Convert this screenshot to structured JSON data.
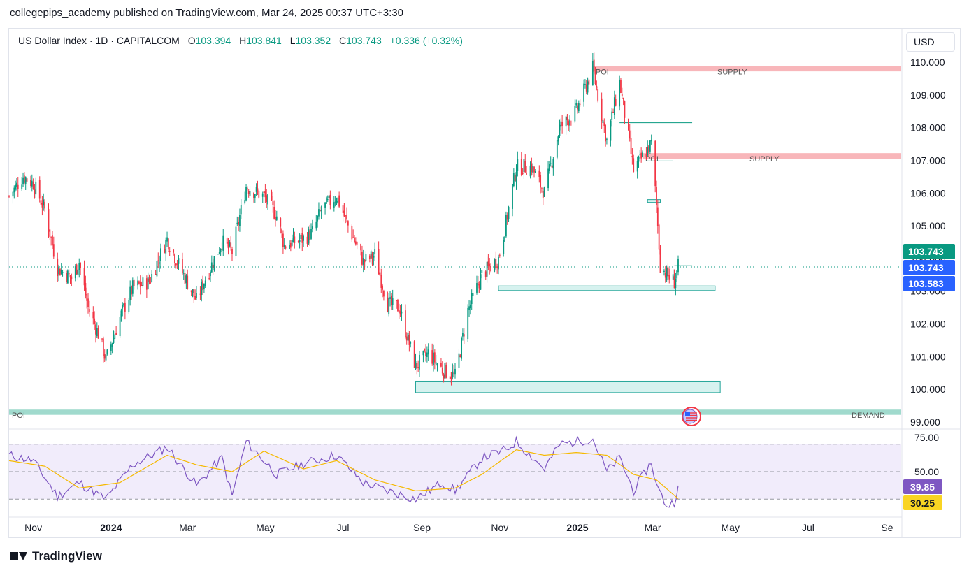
{
  "header": {
    "publisher": "collegepips_academy published on TradingView.com, Mar 24, 2025 00:37 UTC+3:30"
  },
  "legend": {
    "symbol": "US Dollar Index · 1D · CAPITALCOM",
    "o_label": "O",
    "o": "103.394",
    "h_label": "H",
    "h": "103.841",
    "l_label": "L",
    "l": "103.352",
    "c_label": "C",
    "c": "103.743",
    "change": "+0.336 (+0.32%)"
  },
  "currency_button": "USD",
  "footer": {
    "brand": "TradingView"
  },
  "colors": {
    "up": "#089981",
    "down": "#f23645",
    "rsi": "#7e57c2",
    "rsi_ma": "#f5b900",
    "supply": "#f7a9ae",
    "demand": "#8fd3c4",
    "zone": "#d6f2ef",
    "price_tag": "#089981",
    "blue_tag": "#2962ff"
  },
  "chart_data": [
    {
      "type": "candlestick",
      "title": "US Dollar Index · 1D · CAPITALCOM",
      "ylim": [
        98.9,
        110.3
      ],
      "y_ticks": [
        "110.000",
        "109.000",
        "108.000",
        "107.000",
        "106.000",
        "105.000",
        "104.000",
        "103.000",
        "102.000",
        "101.000",
        "100.000",
        "99.000"
      ],
      "y_tick_values": [
        110,
        109,
        108,
        107,
        106,
        105,
        104,
        103,
        102,
        101,
        100,
        99
      ],
      "x_ticks": [
        "Nov",
        "2024",
        "Mar",
        "May",
        "Jul",
        "Sep",
        "Nov",
        "2025",
        "Mar",
        "May",
        "Jul",
        "Se"
      ],
      "x_tick_bold": [
        false,
        true,
        false,
        false,
        false,
        false,
        false,
        true,
        false,
        false,
        false,
        false
      ],
      "x_tick_dates": [
        "2023-11-01",
        "2024-01-01",
        "2024-03-01",
        "2024-05-01",
        "2024-07-01",
        "2024-09-01",
        "2024-11-01",
        "2025-01-01",
        "2025-03-01",
        "2025-05-01",
        "2025-07-01",
        "2025-09-01"
      ],
      "x_range": [
        "2023-10-13",
        "2025-09-12"
      ],
      "close_path": [
        [
          "2023-10-13",
          105.9
        ],
        [
          "2023-10-24",
          106.5
        ],
        [
          "2023-11-01",
          106.3
        ],
        [
          "2023-11-10",
          105.5
        ],
        [
          "2023-11-20",
          103.7
        ],
        [
          "2023-12-01",
          103.4
        ],
        [
          "2023-12-07",
          103.9
        ],
        [
          "2023-12-14",
          102.5
        ],
        [
          "2023-12-22",
          101.7
        ],
        [
          "2023-12-28",
          100.9
        ],
        [
          "2024-01-08",
          102.2
        ],
        [
          "2024-01-18",
          103.1
        ],
        [
          "2024-01-31",
          103.3
        ],
        [
          "2024-02-14",
          104.6
        ],
        [
          "2024-02-22",
          103.9
        ],
        [
          "2024-03-08",
          102.7
        ],
        [
          "2024-03-14",
          103.3
        ],
        [
          "2024-03-28",
          104.5
        ],
        [
          "2024-04-05",
          104.2
        ],
        [
          "2024-04-16",
          106.2
        ],
        [
          "2024-04-30",
          105.9
        ],
        [
          "2024-05-10",
          105.3
        ],
        [
          "2024-05-16",
          104.4
        ],
        [
          "2024-05-31",
          104.6
        ],
        [
          "2024-06-07",
          104.8
        ],
        [
          "2024-06-14",
          105.5
        ],
        [
          "2024-06-26",
          105.9
        ],
        [
          "2024-07-05",
          105.0
        ],
        [
          "2024-07-17",
          103.9
        ],
        [
          "2024-07-26",
          104.1
        ],
        [
          "2024-08-05",
          102.6
        ],
        [
          "2024-08-14",
          102.5
        ],
        [
          "2024-08-27",
          100.7
        ],
        [
          "2024-09-06",
          101.1
        ],
        [
          "2024-09-17",
          100.6
        ],
        [
          "2024-09-27",
          100.4
        ],
        [
          "2024-10-07",
          102.4
        ],
        [
          "2024-10-18",
          103.5
        ],
        [
          "2024-10-31",
          104.0
        ],
        [
          "2024-11-06",
          105.1
        ],
        [
          "2024-11-14",
          106.8
        ],
        [
          "2024-11-26",
          106.8
        ],
        [
          "2024-12-06",
          106.0
        ],
        [
          "2024-12-18",
          108.0
        ],
        [
          "2024-12-31",
          108.5
        ],
        [
          "2025-01-13",
          109.8
        ],
        [
          "2025-01-24",
          107.6
        ],
        [
          "2025-02-03",
          109.4
        ],
        [
          "2025-02-14",
          106.7
        ],
        [
          "2025-02-28",
          107.5
        ],
        [
          "2025-03-04",
          105.6
        ],
        [
          "2025-03-07",
          103.8
        ],
        [
          "2025-03-12",
          103.5
        ],
        [
          "2025-03-18",
          103.3
        ],
        [
          "2025-03-21",
          103.74
        ]
      ],
      "last_price": 103.743,
      "price_tags": [
        {
          "value": 103.743,
          "label": "103.743",
          "style": "green"
        },
        {
          "value": 103.743,
          "label": "103.743",
          "style": "blue"
        },
        {
          "value": 103.583,
          "label": "103.583",
          "style": "blue"
        }
      ],
      "zones": [
        {
          "kind": "supply",
          "label_left": "POI",
          "label_right": "SUPPLY",
          "y_low": 109.72,
          "y_high": 109.88,
          "x_start": "2025-01-13",
          "x_end": "2025-09-12"
        },
        {
          "kind": "supply",
          "label_left": "POI",
          "label_right": "SUPPLY",
          "y_low": 107.05,
          "y_high": 107.22,
          "x_start": "2025-02-21",
          "x_end": "2025-09-12"
        },
        {
          "kind": "demand",
          "label_left": "POI",
          "label_right": "DEMAND",
          "y_low": 99.22,
          "y_high": 99.38,
          "x_start": "2023-10-13",
          "x_end": "2025-09-12"
        },
        {
          "kind": "box",
          "y_low": 103.02,
          "y_high": 103.16,
          "x_start": "2024-10-31",
          "x_end": "2025-04-19"
        },
        {
          "kind": "box",
          "y_low": 99.9,
          "y_high": 100.25,
          "x_start": "2024-08-27",
          "x_end": "2025-04-23"
        },
        {
          "kind": "box",
          "y_low": 105.73,
          "y_high": 105.8,
          "x_start": "2025-02-25",
          "x_end": "2025-03-07"
        }
      ],
      "levels": [
        {
          "y": 108.15,
          "x_start": "2025-02-03",
          "x_end": "2025-04-01"
        },
        {
          "y": 106.98,
          "x_start": "2025-02-24",
          "x_end": "2025-03-17"
        },
        {
          "y": 103.78,
          "x_start": "2025-03-18",
          "x_end": "2025-04-01"
        }
      ]
    },
    {
      "type": "line",
      "title": "RSI",
      "ylim": [
        20,
        80
      ],
      "y_ticks": [
        "75.00",
        "50.00"
      ],
      "y_tick_values": [
        75,
        50
      ],
      "bands": [
        70,
        50,
        30
      ],
      "current": {
        "rsi": "39.85",
        "ma": "30.25"
      },
      "series": [
        {
          "points": [
            [
              "2023-10-13",
              62
            ],
            [
              "2023-11-01",
              58
            ],
            [
              "2023-11-20",
              32
            ],
            [
              "2023-12-07",
              42
            ],
            [
              "2023-12-28",
              30
            ],
            [
              "2024-01-18",
              55
            ],
            [
              "2024-02-14",
              68
            ],
            [
              "2024-03-08",
              40
            ],
            [
              "2024-03-28",
              60
            ],
            [
              "2024-04-05",
              32
            ],
            [
              "2024-04-16",
              72
            ],
            [
              "2024-05-10",
              48
            ],
            [
              "2024-05-31",
              56
            ],
            [
              "2024-06-26",
              62
            ],
            [
              "2024-07-17",
              42
            ],
            [
              "2024-08-05",
              36
            ],
            [
              "2024-08-27",
              30
            ],
            [
              "2024-09-17",
              42
            ],
            [
              "2024-09-27",
              36
            ],
            [
              "2024-10-18",
              60
            ],
            [
              "2024-11-06",
              66
            ],
            [
              "2024-11-14",
              72
            ],
            [
              "2024-12-06",
              52
            ],
            [
              "2024-12-18",
              70
            ],
            [
              "2025-01-13",
              74
            ],
            [
              "2025-01-24",
              50
            ],
            [
              "2025-02-03",
              60
            ],
            [
              "2025-02-14",
              36
            ],
            [
              "2025-02-28",
              57
            ],
            [
              "2025-03-04",
              40
            ],
            [
              "2025-03-12",
              25
            ],
            [
              "2025-03-18",
              28
            ],
            [
              "2025-03-21",
              39.85
            ]
          ]
        },
        {
          "points": [
            [
              "2023-10-13",
              58
            ],
            [
              "2023-11-10",
              54
            ],
            [
              "2023-12-07",
              38
            ],
            [
              "2024-01-08",
              42
            ],
            [
              "2024-02-14",
              62
            ],
            [
              "2024-03-08",
              55
            ],
            [
              "2024-04-05",
              50
            ],
            [
              "2024-04-30",
              65
            ],
            [
              "2024-05-31",
              52
            ],
            [
              "2024-06-26",
              58
            ],
            [
              "2024-07-26",
              44
            ],
            [
              "2024-08-27",
              36
            ],
            [
              "2024-09-27",
              38
            ],
            [
              "2024-10-18",
              48
            ],
            [
              "2024-11-14",
              66
            ],
            [
              "2024-12-06",
              62
            ],
            [
              "2024-12-31",
              64
            ],
            [
              "2025-01-24",
              62
            ],
            [
              "2025-02-14",
              48
            ],
            [
              "2025-03-04",
              44
            ],
            [
              "2025-03-21",
              30.25
            ]
          ]
        }
      ]
    }
  ]
}
